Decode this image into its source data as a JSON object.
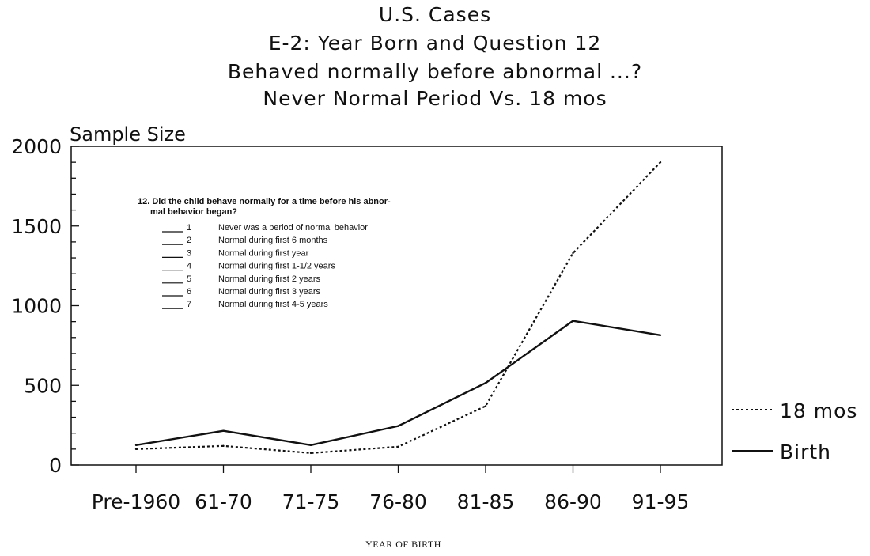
{
  "chart_data": {
    "type": "line",
    "title_lines": [
      "U.S. Cases",
      "E-2: Year Born and Question 12",
      "Behaved normally before abnormal ...?",
      "Never Normal Period Vs. 18 mos"
    ],
    "ylabel": "Sample Size",
    "xlabel": "YEAR OF BIRTH",
    "categories": [
      "Pre-1960",
      "61-70",
      "71-75",
      "76-80",
      "81-85",
      "86-90",
      "91-95"
    ],
    "ylim": [
      0,
      2000
    ],
    "yticks": [
      0,
      500,
      1000,
      1500,
      2000
    ],
    "series": [
      {
        "name": "18 mos",
        "style": "dashed",
        "values": [
          100,
          120,
          75,
          115,
          370,
          1330,
          1900
        ]
      },
      {
        "name": "Birth",
        "style": "solid",
        "values": [
          125,
          215,
          125,
          245,
          515,
          905,
          815
        ]
      }
    ],
    "legend_placement": "right",
    "grid": false,
    "annotation": {
      "question": [
        "12.  Did the child behave normally for a time before his abnor-",
        "mal behavior began?"
      ],
      "options": [
        {
          "number": "1",
          "text": "Never was a period of normal behavior"
        },
        {
          "number": "2",
          "text": "Normal during first 6 months"
        },
        {
          "number": "3",
          "text": "Normal during first year"
        },
        {
          "number": "4",
          "text": "Normal during first 1-1/2 years"
        },
        {
          "number": "5",
          "text": "Normal during first 2 years"
        },
        {
          "number": "6",
          "text": "Normal during first 3 years"
        },
        {
          "number": "7",
          "text": "Normal during first 4-5 years"
        }
      ]
    }
  },
  "colors": {
    "ink": "#111111",
    "background": "#ffffff"
  }
}
